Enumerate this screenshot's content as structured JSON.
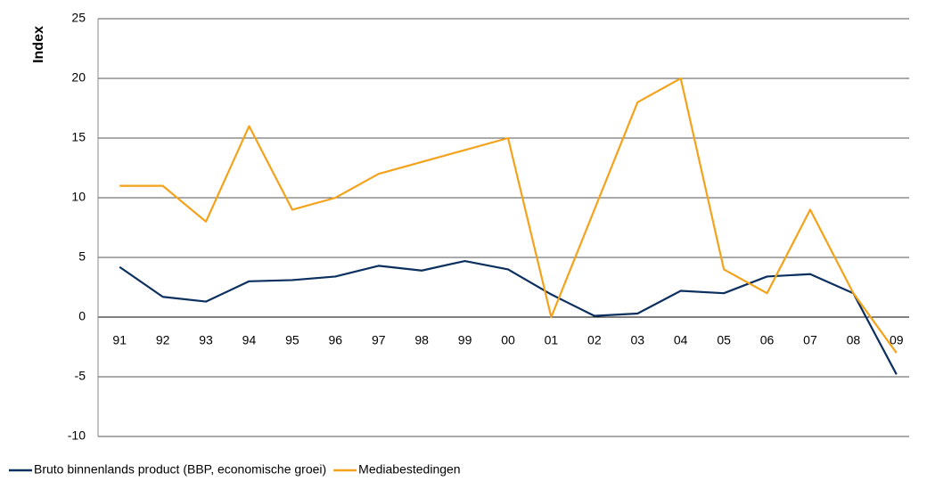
{
  "chart_data": {
    "type": "line",
    "ylabel": "Index",
    "categories": [
      "91",
      "92",
      "93",
      "94",
      "95",
      "96",
      "97",
      "98",
      "99",
      "00",
      "01",
      "02",
      "03",
      "04",
      "05",
      "06",
      "07",
      "08",
      "09"
    ],
    "series": [
      {
        "name": "Bruto binnenlands product (BBP, economische groei)",
        "color": "#0b2f5e",
        "values": [
          4.2,
          1.7,
          1.3,
          3.0,
          3.1,
          3.4,
          4.3,
          3.9,
          4.7,
          4.0,
          1.9,
          0.1,
          0.3,
          2.2,
          2.0,
          3.4,
          3.6,
          2.0,
          -4.8
        ]
      },
      {
        "name": "Mediabestedingen",
        "color": "#f5a21b",
        "values": [
          11,
          11,
          8,
          16,
          9,
          10,
          12,
          13,
          14,
          15,
          0,
          9,
          18,
          20,
          4,
          2,
          9,
          2,
          -3
        ]
      }
    ],
    "ylim": [
      -10,
      25
    ],
    "yticks": [
      -10,
      -5,
      0,
      5,
      10,
      15,
      20,
      25
    ],
    "grid": true,
    "legend": "bottom-left"
  }
}
